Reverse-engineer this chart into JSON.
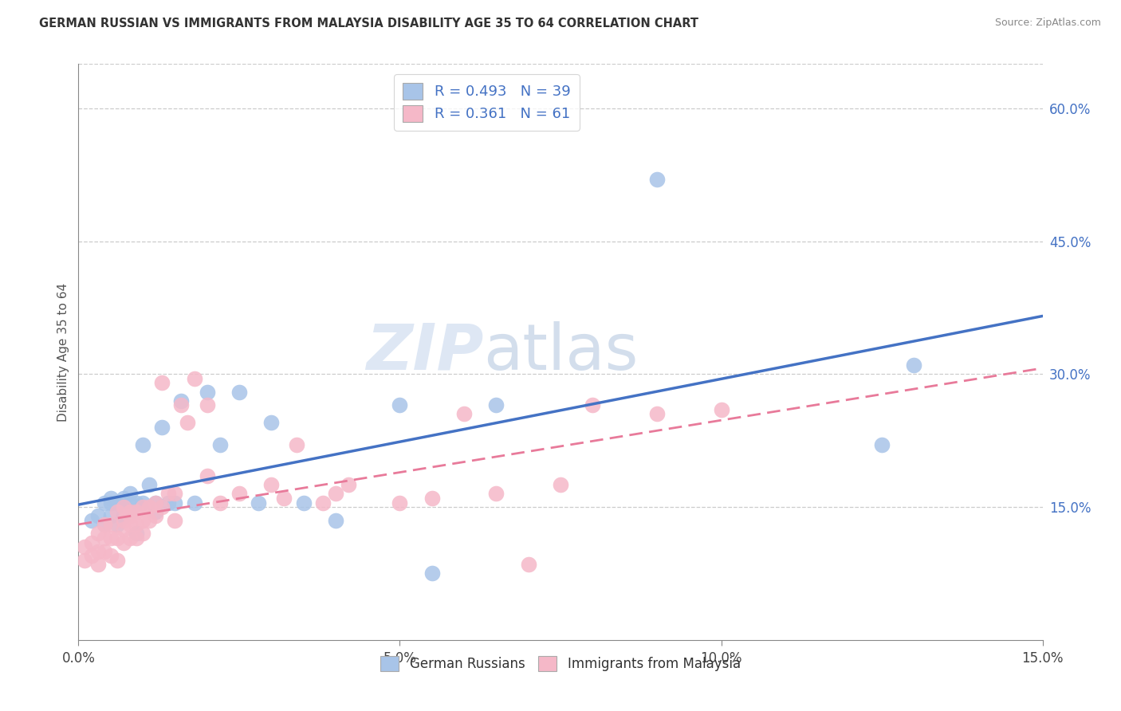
{
  "title": "GERMAN RUSSIAN VS IMMIGRANTS FROM MALAYSIA DISABILITY AGE 35 TO 64 CORRELATION CHART",
  "source": "Source: ZipAtlas.com",
  "ylabel": "Disability Age 35 to 64",
  "xlim": [
    0.0,
    0.15
  ],
  "ylim": [
    0.0,
    0.65
  ],
  "xticks": [
    0.0,
    0.05,
    0.1,
    0.15
  ],
  "xtick_labels": [
    "0.0%",
    "5.0%",
    "10.0%",
    "15.0%"
  ],
  "yticks_right": [
    0.15,
    0.3,
    0.45,
    0.6
  ],
  "ytick_labels_right": [
    "15.0%",
    "30.0%",
    "45.0%",
    "60.0%"
  ],
  "blue_R": 0.493,
  "blue_N": 39,
  "pink_R": 0.361,
  "pink_N": 61,
  "blue_color": "#a8c4e8",
  "pink_color": "#f5b8c8",
  "blue_line_color": "#4472c4",
  "pink_line_color": "#e87a9a",
  "watermark_zip": "ZIP",
  "watermark_atlas": "atlas",
  "blue_scatter_x": [
    0.002,
    0.003,
    0.004,
    0.004,
    0.005,
    0.005,
    0.005,
    0.006,
    0.006,
    0.007,
    0.007,
    0.008,
    0.008,
    0.008,
    0.009,
    0.009,
    0.01,
    0.01,
    0.011,
    0.012,
    0.012,
    0.013,
    0.014,
    0.015,
    0.016,
    0.018,
    0.02,
    0.022,
    0.025,
    0.028,
    0.03,
    0.035,
    0.04,
    0.05,
    0.055,
    0.065,
    0.09,
    0.125,
    0.13
  ],
  "blue_scatter_y": [
    0.135,
    0.14,
    0.13,
    0.155,
    0.14,
    0.155,
    0.16,
    0.13,
    0.155,
    0.14,
    0.16,
    0.145,
    0.155,
    0.165,
    0.12,
    0.155,
    0.155,
    0.22,
    0.175,
    0.145,
    0.155,
    0.24,
    0.155,
    0.155,
    0.27,
    0.155,
    0.28,
    0.22,
    0.28,
    0.155,
    0.245,
    0.155,
    0.135,
    0.265,
    0.075,
    0.265,
    0.52,
    0.22,
    0.31
  ],
  "pink_scatter_x": [
    0.001,
    0.001,
    0.002,
    0.002,
    0.003,
    0.003,
    0.003,
    0.004,
    0.004,
    0.004,
    0.005,
    0.005,
    0.005,
    0.006,
    0.006,
    0.006,
    0.007,
    0.007,
    0.007,
    0.007,
    0.008,
    0.008,
    0.008,
    0.008,
    0.009,
    0.009,
    0.009,
    0.01,
    0.01,
    0.01,
    0.011,
    0.011,
    0.012,
    0.012,
    0.013,
    0.013,
    0.014,
    0.015,
    0.015,
    0.016,
    0.017,
    0.018,
    0.02,
    0.02,
    0.022,
    0.025,
    0.03,
    0.032,
    0.034,
    0.038,
    0.04,
    0.042,
    0.05,
    0.055,
    0.06,
    0.065,
    0.07,
    0.075,
    0.08,
    0.09,
    0.1
  ],
  "pink_scatter_y": [
    0.09,
    0.105,
    0.095,
    0.11,
    0.085,
    0.1,
    0.12,
    0.1,
    0.115,
    0.13,
    0.095,
    0.115,
    0.13,
    0.09,
    0.115,
    0.145,
    0.11,
    0.125,
    0.135,
    0.15,
    0.115,
    0.13,
    0.14,
    0.145,
    0.115,
    0.13,
    0.145,
    0.12,
    0.135,
    0.15,
    0.135,
    0.15,
    0.14,
    0.155,
    0.15,
    0.29,
    0.165,
    0.135,
    0.165,
    0.265,
    0.245,
    0.295,
    0.185,
    0.265,
    0.155,
    0.165,
    0.175,
    0.16,
    0.22,
    0.155,
    0.165,
    0.175,
    0.155,
    0.16,
    0.255,
    0.165,
    0.085,
    0.175,
    0.265,
    0.255,
    0.26
  ]
}
